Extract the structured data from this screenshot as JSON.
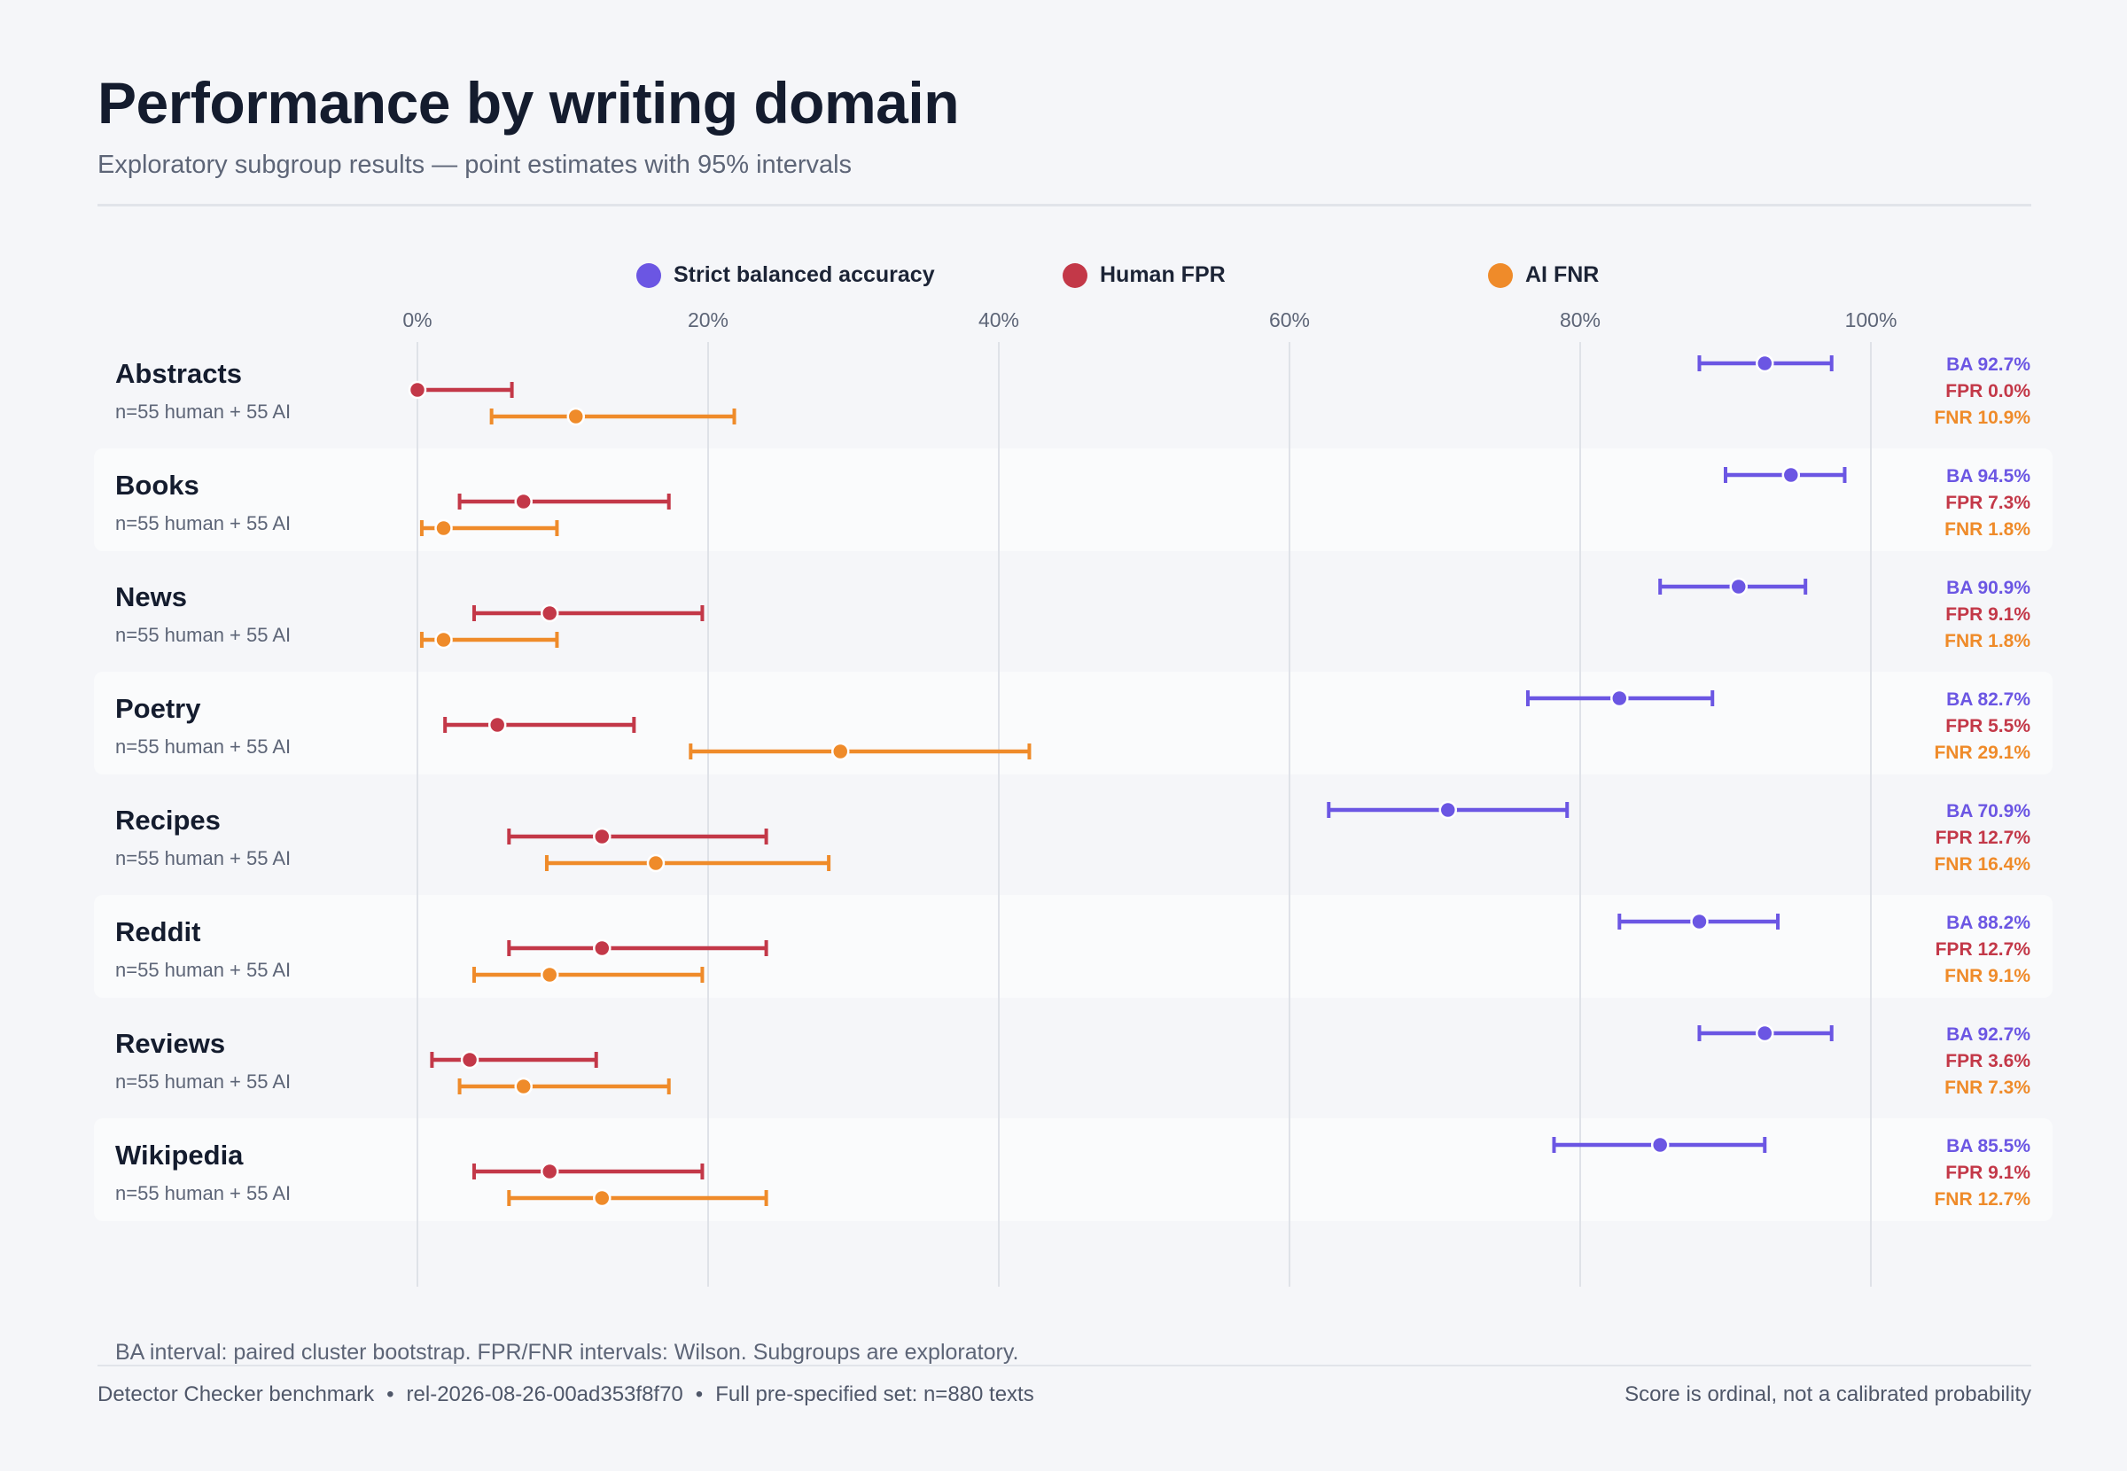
{
  "header": {
    "title": "Performance by writing domain",
    "subtitle": "Exploratory subgroup results — point estimates with 95% intervals"
  },
  "footer": {
    "note": "BA interval: paired cluster bootstrap. FPR/FNR intervals: Wilson. Subgroups are exploratory.",
    "benchmark": "Detector Checker benchmark",
    "release": "rel-2026-08-26-00ad353f8f70",
    "full_set": "Full pre-specified set: n=880 texts",
    "disclaimer": "Score is ordinal, not a calibrated probability",
    "separator": "•"
  },
  "chart_data": {
    "type": "forest",
    "title": "Performance by writing domain",
    "subtitle": "Exploratory subgroup results — point estimates with 95% intervals",
    "x_range": [
      0,
      100
    ],
    "x_unit": "%",
    "x_ticks": [
      0,
      20,
      40,
      60,
      80,
      100
    ],
    "x_tick_labels": [
      "0%",
      "20%",
      "40%",
      "60%",
      "80%",
      "100%"
    ],
    "grid": true,
    "legend_position": "top-center",
    "series": [
      {
        "key": "ba",
        "name": "Strict balanced accuracy",
        "prefix": "BA",
        "color": "#6b56e3"
      },
      {
        "key": "fpr",
        "name": "Human FPR",
        "prefix": "FPR",
        "color": "#c33848"
      },
      {
        "key": "fnr",
        "name": "AI FNR",
        "prefix": "FNR",
        "color": "#ef8b2a"
      }
    ],
    "rows": [
      {
        "domain": "Abstracts",
        "n_label": "n=55 human + 55 AI",
        "ba": {
          "est": 92.7,
          "lo": 88.2,
          "hi": 97.3
        },
        "fpr": {
          "est": 0.0,
          "lo": 0.0,
          "hi": 6.5
        },
        "fnr": {
          "est": 10.9,
          "lo": 5.1,
          "hi": 21.8
        }
      },
      {
        "domain": "Books",
        "n_label": "n=55 human + 55 AI",
        "ba": {
          "est": 94.5,
          "lo": 90.0,
          "hi": 98.2
        },
        "fpr": {
          "est": 7.3,
          "lo": 2.9,
          "hi": 17.3
        },
        "fnr": {
          "est": 1.8,
          "lo": 0.3,
          "hi": 9.6
        }
      },
      {
        "domain": "News",
        "n_label": "n=55 human + 55 AI",
        "ba": {
          "est": 90.9,
          "lo": 85.5,
          "hi": 95.5
        },
        "fpr": {
          "est": 9.1,
          "lo": 3.9,
          "hi": 19.6
        },
        "fnr": {
          "est": 1.8,
          "lo": 0.3,
          "hi": 9.6
        }
      },
      {
        "domain": "Poetry",
        "n_label": "n=55 human + 55 AI",
        "ba": {
          "est": 82.7,
          "lo": 76.4,
          "hi": 89.1
        },
        "fpr": {
          "est": 5.5,
          "lo": 1.9,
          "hi": 14.9
        },
        "fnr": {
          "est": 29.1,
          "lo": 18.8,
          "hi": 42.1
        }
      },
      {
        "domain": "Recipes",
        "n_label": "n=55 human + 55 AI",
        "ba": {
          "est": 70.9,
          "lo": 62.7,
          "hi": 79.1
        },
        "fpr": {
          "est": 12.7,
          "lo": 6.3,
          "hi": 24.0
        },
        "fnr": {
          "est": 16.4,
          "lo": 8.9,
          "hi": 28.3
        }
      },
      {
        "domain": "Reddit",
        "n_label": "n=55 human + 55 AI",
        "ba": {
          "est": 88.2,
          "lo": 82.7,
          "hi": 93.6
        },
        "fpr": {
          "est": 12.7,
          "lo": 6.3,
          "hi": 24.0
        },
        "fnr": {
          "est": 9.1,
          "lo": 3.9,
          "hi": 19.6
        }
      },
      {
        "domain": "Reviews",
        "n_label": "n=55 human + 55 AI",
        "ba": {
          "est": 92.7,
          "lo": 88.2,
          "hi": 97.3
        },
        "fpr": {
          "est": 3.6,
          "lo": 1.0,
          "hi": 12.3
        },
        "fnr": {
          "est": 7.3,
          "lo": 2.9,
          "hi": 17.3
        }
      },
      {
        "domain": "Wikipedia",
        "n_label": "n=55 human + 55 AI",
        "ba": {
          "est": 85.5,
          "lo": 78.2,
          "hi": 92.7
        },
        "fpr": {
          "est": 9.1,
          "lo": 3.9,
          "hi": 19.6
        },
        "fnr": {
          "est": 12.7,
          "lo": 6.3,
          "hi": 24.0
        }
      }
    ]
  }
}
